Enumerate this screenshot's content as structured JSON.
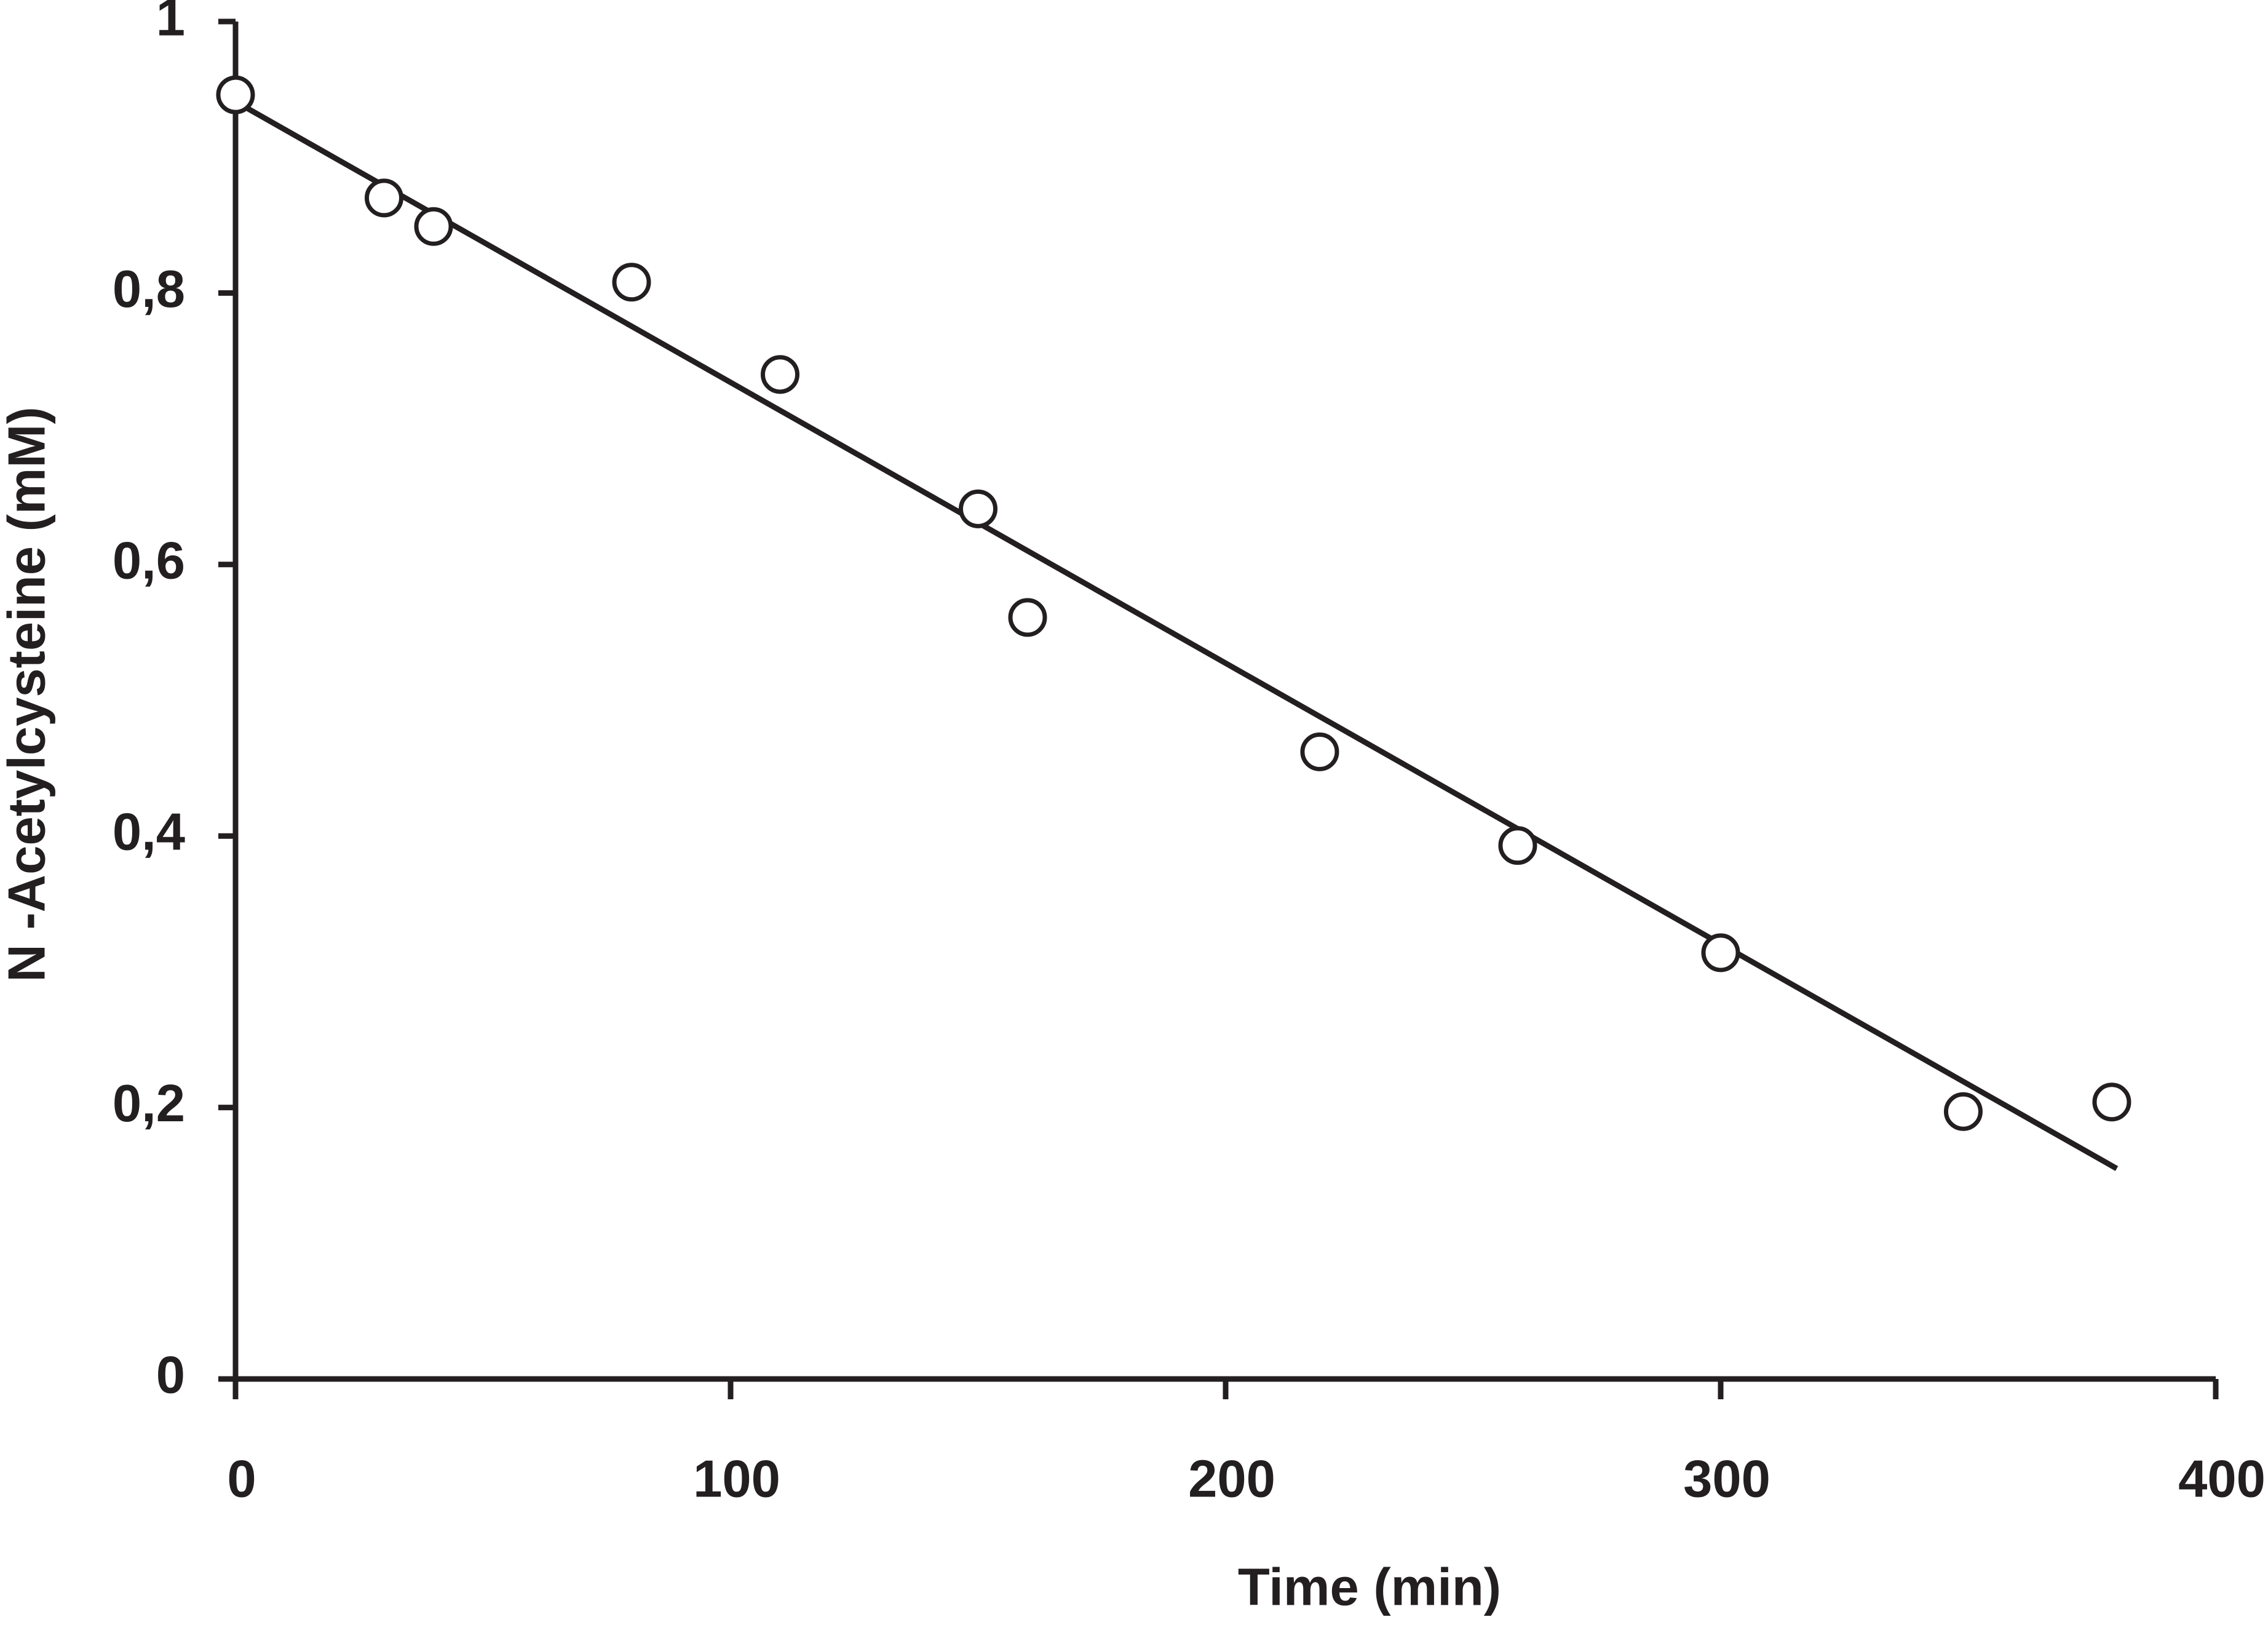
{
  "chart_data": {
    "type": "scatter",
    "xlabel": "Time (min)",
    "ylabel": "N -Acetylcysteine (mM)",
    "series": [
      {
        "type": "scatter",
        "color": "#231f20",
        "x": [
          0,
          30,
          40,
          80,
          110,
          150,
          160,
          219,
          259,
          300,
          349,
          379
        ],
        "values": [
          0.946,
          0.87,
          0.849,
          0.808,
          0.74,
          0.641,
          0.561,
          0.462,
          0.393,
          0.314,
          0.197,
          0.204
        ]
      },
      {
        "type": "line",
        "color": "#231f20",
        "x": [
          0,
          380
        ],
        "values": [
          0.941,
          0.155
        ]
      }
    ],
    "xlim": [
      0,
      400
    ],
    "xticks": [
      0,
      100,
      200,
      300,
      400
    ],
    "ylim": [
      0,
      1
    ],
    "yticks": [
      0,
      {
        "value": 0.2,
        "label": "0,2"
      },
      {
        "value": 0.4,
        "label": "0,4"
      },
      {
        "value": 0.6,
        "label": "0,6"
      },
      {
        "value": 0.8,
        "label": "0,8"
      },
      1
    ],
    "grid": false
  }
}
